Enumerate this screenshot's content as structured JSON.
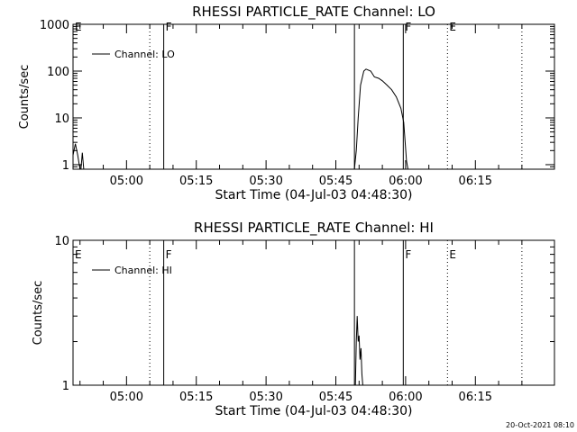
{
  "footer": {
    "timestamp": "20-Oct-2021 08:10"
  },
  "chart_data": [
    {
      "type": "line",
      "title": "RHESSI PARTICLE_RATE Channel: LO",
      "xlabel": "Start Time (04-Jul-03 04:48:30)",
      "ylabel": "Counts/sec",
      "yscale": "log",
      "ylim": [
        0.8,
        1000
      ],
      "y_ticks": [
        {
          "value": 1,
          "label": "1"
        },
        {
          "value": 10,
          "label": "10"
        },
        {
          "value": 100,
          "label": "100"
        },
        {
          "value": 1000,
          "label": "1000"
        }
      ],
      "xlim_minutes": [
        288.5,
        392
      ],
      "x_ticks": [
        {
          "minute": 300,
          "label": "05:00"
        },
        {
          "minute": 315,
          "label": "05:15"
        },
        {
          "minute": 330,
          "label": "05:30"
        },
        {
          "minute": 345,
          "label": "05:45"
        },
        {
          "minute": 360,
          "label": "06:00"
        },
        {
          "minute": 375,
          "label": "06:15"
        }
      ],
      "grid": false,
      "legend": {
        "position": "top-left",
        "entries": [
          "Channel: LO"
        ]
      },
      "markers": [
        {
          "minute": 288.5,
          "style": "dotted",
          "label": "E"
        },
        {
          "minute": 305,
          "style": "dotted",
          "label": ""
        },
        {
          "minute": 308,
          "style": "solid",
          "label": "F"
        },
        {
          "minute": 349,
          "style": "solid",
          "label": ""
        },
        {
          "minute": 359.5,
          "style": "solid",
          "label": "F"
        },
        {
          "minute": 369,
          "style": "dotted",
          "label": "E"
        },
        {
          "minute": 385,
          "style": "dotted",
          "label": ""
        }
      ],
      "series": [
        {
          "name": "Channel: LO",
          "segments": [
            [
              [
                288.5,
                1.6
              ],
              [
                289.0,
                2.8
              ],
              [
                289.5,
                1.6
              ],
              [
                290.0,
                0.8
              ]
            ],
            [
              [
                290.2,
                0.8
              ],
              [
                290.5,
                1.8
              ],
              [
                290.8,
                0.8
              ]
            ],
            [
              [
                349.0,
                0.8
              ],
              [
                349.4,
                2
              ],
              [
                349.8,
                10
              ],
              [
                350.3,
                50
              ],
              [
                351.0,
                100
              ],
              [
                351.5,
                110
              ],
              [
                352.5,
                100
              ],
              [
                353.3,
                75
              ],
              [
                354.2,
                70
              ],
              [
                355.0,
                62
              ],
              [
                356.0,
                50
              ],
              [
                357.0,
                40
              ],
              [
                358.0,
                28
              ],
              [
                359.0,
                16
              ],
              [
                359.6,
                8
              ],
              [
                360.2,
                1.2
              ],
              [
                360.5,
                0.8
              ]
            ]
          ]
        }
      ]
    },
    {
      "type": "line",
      "title": "RHESSI PARTICLE_RATE Channel: HI",
      "xlabel": "Start Time (04-Jul-03 04:48:30)",
      "ylabel": "Counts/sec",
      "yscale": "log",
      "ylim": [
        1,
        10
      ],
      "y_ticks": [
        {
          "value": 1,
          "label": "1"
        },
        {
          "value": 10,
          "label": "10"
        }
      ],
      "xlim_minutes": [
        288.5,
        392
      ],
      "x_ticks": [
        {
          "minute": 300,
          "label": "05:00"
        },
        {
          "minute": 315,
          "label": "05:15"
        },
        {
          "minute": 330,
          "label": "05:30"
        },
        {
          "minute": 345,
          "label": "05:45"
        },
        {
          "minute": 360,
          "label": "06:00"
        },
        {
          "minute": 375,
          "label": "06:15"
        }
      ],
      "grid": false,
      "legend": {
        "position": "top-left",
        "entries": [
          "Channel: HI"
        ]
      },
      "markers": [
        {
          "minute": 288.5,
          "style": "dotted",
          "label": "E"
        },
        {
          "minute": 305,
          "style": "dotted",
          "label": ""
        },
        {
          "minute": 308,
          "style": "solid",
          "label": "F"
        },
        {
          "minute": 349,
          "style": "solid",
          "label": ""
        },
        {
          "minute": 359.5,
          "style": "solid",
          "label": "F"
        },
        {
          "minute": 369,
          "style": "dotted",
          "label": "E"
        },
        {
          "minute": 385,
          "style": "dotted",
          "label": ""
        }
      ],
      "series": [
        {
          "name": "Channel: HI",
          "segments": [
            [
              [
                349.2,
                1
              ],
              [
                349.4,
                2
              ],
              [
                349.6,
                3
              ],
              [
                349.8,
                2
              ],
              [
                350.0,
                2.2
              ],
              [
                350.2,
                1.5
              ],
              [
                350.4,
                1.8
              ],
              [
                350.6,
                1.2
              ],
              [
                350.8,
                1
              ]
            ]
          ]
        }
      ]
    }
  ]
}
